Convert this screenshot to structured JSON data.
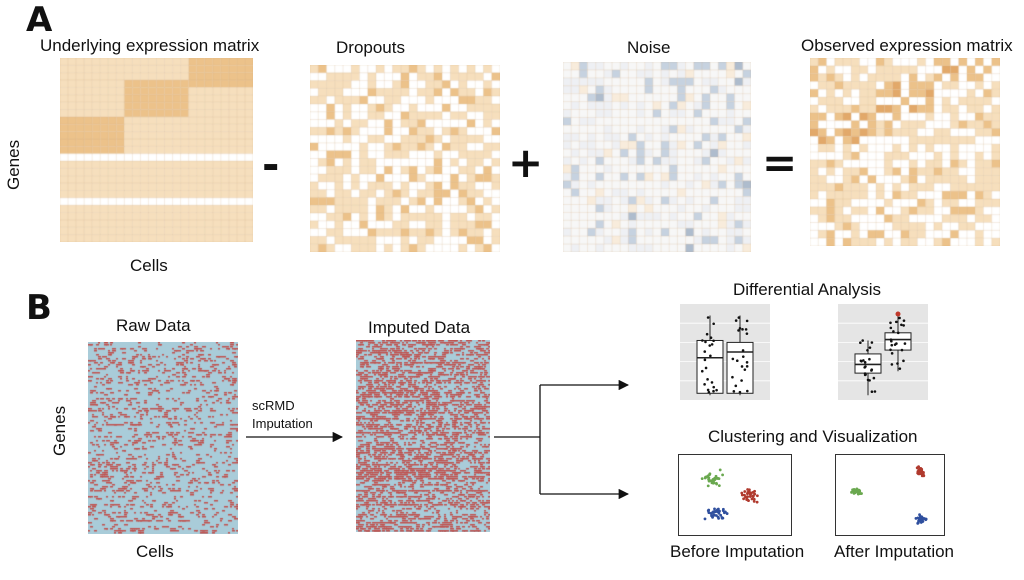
{
  "panel_a": {
    "letter": "A",
    "underlying_title": "Underlying expression matrix",
    "dropouts_title": "Dropouts",
    "noise_title": "Noise",
    "observed_title": "Observed expression matrix",
    "genes_label": "Genes",
    "cells_label": "Cells",
    "minus": "-",
    "plus": "+",
    "equals": "="
  },
  "panel_b": {
    "letter": "B",
    "raw_title": "Raw Data",
    "imputed_title": "Imputed Data",
    "genes_label": "Genes",
    "cells_label": "Cells",
    "arrow_label_line1": "scRMD",
    "arrow_label_line2": "Imputation",
    "differential_title": "Differential Analysis",
    "clustering_title": "Clustering and Visualization",
    "before_label": "Before Imputation",
    "after_label": "After Imputation"
  },
  "colors": {
    "matrix_light": "#f6dfbd",
    "matrix_dark": "#ecc28a",
    "grid_line": "#c9a57a",
    "noise_blue": "#c6d2e0",
    "heat_blue": "#a9ccd9",
    "heat_red": "#c0504d",
    "cluster_green": "#6aa84f",
    "cluster_red": "#b03a2e",
    "cluster_blue": "#2f4f9e",
    "plot_bg": "#e5e5e5"
  }
}
